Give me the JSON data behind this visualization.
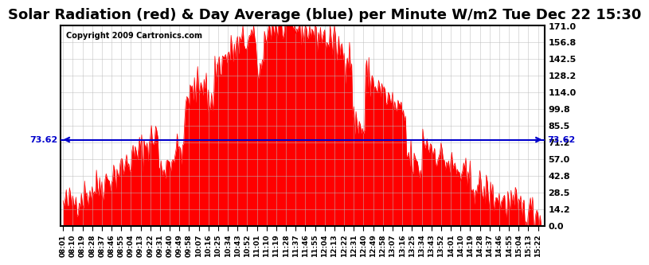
{
  "title": "Solar Radiation (red) & Day Average (blue) per Minute W/m2 Tue Dec 22 15:30",
  "copyright": "Copyright 2009 Cartronics.com",
  "ylim": [
    0.0,
    171.0
  ],
  "yticks": [
    0.0,
    14.2,
    28.5,
    42.8,
    57.0,
    71.2,
    85.5,
    99.8,
    114.0,
    128.2,
    142.5,
    156.8,
    171.0
  ],
  "avg_line_y": 73.62,
  "avg_label": "73.62",
  "area_color": "#FF0000",
  "line_color": "#0000CC",
  "bg_color": "#FFFFFF",
  "grid_color": "#CCCCCC",
  "title_fontsize": 13,
  "xlabel": "",
  "ylabel": ""
}
